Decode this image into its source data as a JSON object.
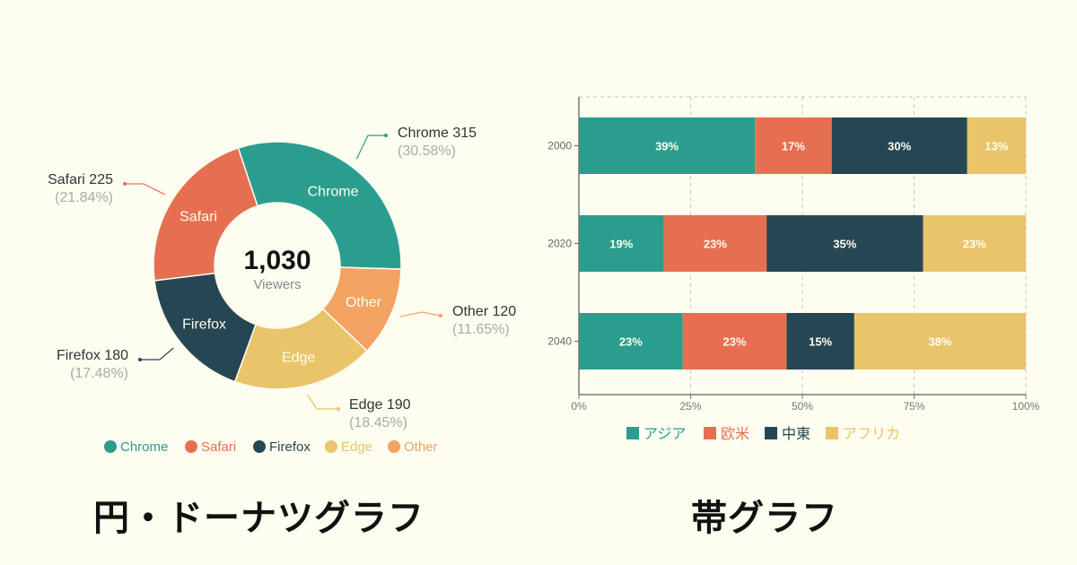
{
  "chart_data": [
    {
      "type": "pie",
      "subtype": "donut",
      "title": "円・ドーナツグラフ",
      "center_label": {
        "value": "1,030",
        "caption": "Viewers"
      },
      "total": 1030,
      "categories": [
        "Chrome",
        "Other",
        "Edge",
        "Firefox",
        "Safari"
      ],
      "values": [
        315,
        120,
        190,
        180,
        225
      ],
      "percents": [
        "30.58%",
        "11.65%",
        "18.45%",
        "17.48%",
        "21.84%"
      ],
      "colors": [
        "#2a9d8f",
        "#f4a261",
        "#e9c46a",
        "#264653",
        "#e76f51"
      ],
      "slices": [
        {
          "name": "Chrome",
          "value": 315,
          "percent": "30.58%",
          "color": "#2a9d8f",
          "outer_label": "Chrome 315",
          "outer_pct": "(30.58%)"
        },
        {
          "name": "Other",
          "value": 120,
          "percent": "11.65%",
          "color": "#f4a261",
          "outer_label": "Other 120",
          "outer_pct": "(11.65%)"
        },
        {
          "name": "Edge",
          "value": 190,
          "percent": "18.45%",
          "color": "#e9c46a",
          "outer_label": "Edge 190",
          "outer_pct": "(18.45%)"
        },
        {
          "name": "Firefox",
          "value": 180,
          "percent": "17.48%",
          "color": "#264653",
          "outer_label": "Firefox 180",
          "outer_pct": "(17.48%)"
        },
        {
          "name": "Safari",
          "value": 225,
          "percent": "21.84%",
          "color": "#e76f51",
          "outer_label": "Safari 225",
          "outer_pct": "(21.84%)"
        }
      ],
      "legend": {
        "position": "bottom",
        "items": [
          {
            "label": "Chrome",
            "color": "#2a9d8f"
          },
          {
            "label": "Safari",
            "color": "#e76f51"
          },
          {
            "label": "Firefox",
            "color": "#264653"
          },
          {
            "label": "Edge",
            "color": "#e9c46a"
          },
          {
            "label": "Other",
            "color": "#f4a261"
          }
        ]
      }
    },
    {
      "type": "bar",
      "subtype": "stacked-100-horizontal",
      "title": "帯グラフ",
      "categories": [
        "2000",
        "2020",
        "2040"
      ],
      "series": [
        {
          "name": "アジア",
          "color": "#2a9d8f",
          "values": [
            39,
            19,
            23
          ]
        },
        {
          "name": "欧米",
          "color": "#e76f51",
          "values": [
            17,
            23,
            23
          ]
        },
        {
          "name": "中東",
          "color": "#264653",
          "values": [
            30,
            35,
            15
          ]
        },
        {
          "name": "アフリカ",
          "color": "#e9c46a",
          "values": [
            13,
            23,
            38
          ]
        }
      ],
      "xlabel": "",
      "ylabel": "",
      "xlim": [
        0,
        100
      ],
      "xticks": [
        "0%",
        "25%",
        "50%",
        "75%",
        "100%"
      ],
      "grid": "vertical dashed",
      "legend": {
        "position": "bottom"
      }
    }
  ],
  "page": {
    "background": "#fdfdf0",
    "donut_title": "円・ドーナツグラフ",
    "bar_title": "帯グラフ"
  }
}
